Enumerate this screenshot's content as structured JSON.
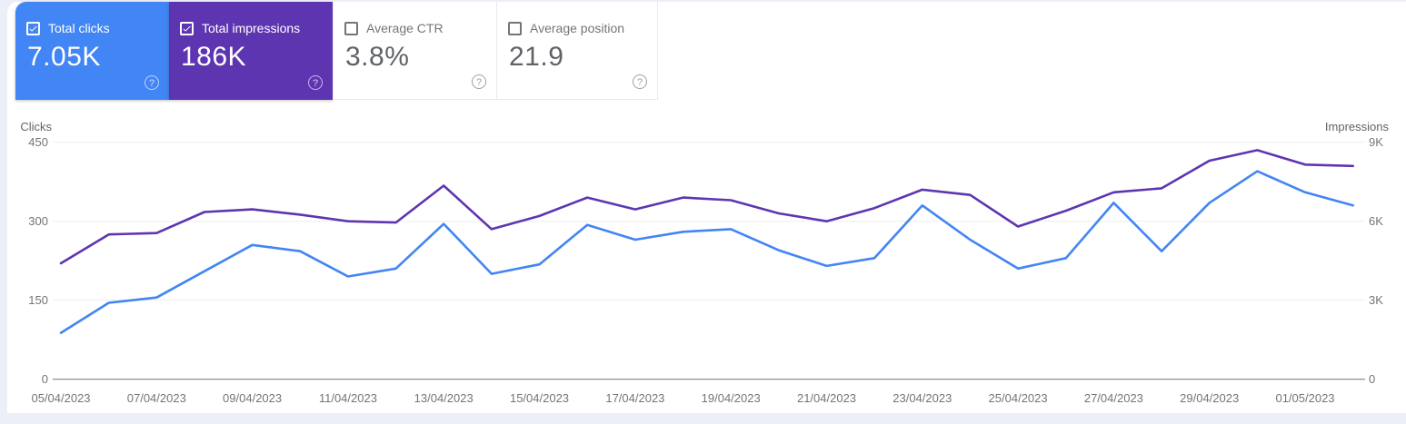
{
  "cards": [
    {
      "label": "Total clicks",
      "value": "7.05K",
      "checked": true,
      "bg": "#4285f4"
    },
    {
      "label": "Total impressions",
      "value": "186K",
      "checked": true,
      "bg": "#5e35b1"
    },
    {
      "label": "Average CTR",
      "value": "3.8%",
      "checked": false,
      "bg": "#ffffff"
    },
    {
      "label": "Average position",
      "value": "21.9",
      "checked": false,
      "bg": "#ffffff"
    }
  ],
  "help_icon_glyph": "?",
  "chart_data": {
    "type": "line",
    "x": [
      "05/04/2023",
      "06/04/2023",
      "07/04/2023",
      "08/04/2023",
      "09/04/2023",
      "10/04/2023",
      "11/04/2023",
      "12/04/2023",
      "13/04/2023",
      "14/04/2023",
      "15/04/2023",
      "16/04/2023",
      "17/04/2023",
      "18/04/2023",
      "19/04/2023",
      "20/04/2023",
      "21/04/2023",
      "22/04/2023",
      "23/04/2023",
      "24/04/2023",
      "25/04/2023",
      "26/04/2023",
      "27/04/2023",
      "28/04/2023",
      "29/04/2023",
      "30/04/2023",
      "01/05/2023",
      "02/05/2023"
    ],
    "x_tick_labels": [
      "05/04/2023",
      "07/04/2023",
      "09/04/2023",
      "11/04/2023",
      "13/04/2023",
      "15/04/2023",
      "17/04/2023",
      "19/04/2023",
      "21/04/2023",
      "23/04/2023",
      "25/04/2023",
      "27/04/2023",
      "29/04/2023",
      "01/05/2023"
    ],
    "series": [
      {
        "name": "Clicks",
        "color": "#4285f4",
        "axis": "left",
        "values": [
          88,
          145,
          155,
          205,
          255,
          243,
          195,
          210,
          295,
          200,
          218,
          293,
          265,
          280,
          285,
          245,
          215,
          230,
          330,
          265,
          210,
          230,
          335,
          243,
          335,
          395,
          355,
          330
        ]
      },
      {
        "name": "Impressions",
        "color": "#5e35b1",
        "axis": "right",
        "values": [
          4400,
          5500,
          5550,
          6350,
          6450,
          6250,
          6000,
          5950,
          7350,
          5700,
          6200,
          6900,
          6450,
          6900,
          6800,
          6300,
          6000,
          6500,
          7200,
          7000,
          5800,
          6400,
          7100,
          7250,
          8300,
          8700,
          8150,
          8100
        ]
      }
    ],
    "axis_left": {
      "title": "Clicks",
      "ticks": [
        "450",
        "300",
        "150",
        "0"
      ],
      "range": [
        0,
        450
      ]
    },
    "axis_right": {
      "title": "Impressions",
      "ticks": [
        "9K",
        "6K",
        "3K",
        "0"
      ],
      "range": [
        0,
        9000
      ]
    },
    "grid": "horizontal",
    "legend_position": "none"
  }
}
